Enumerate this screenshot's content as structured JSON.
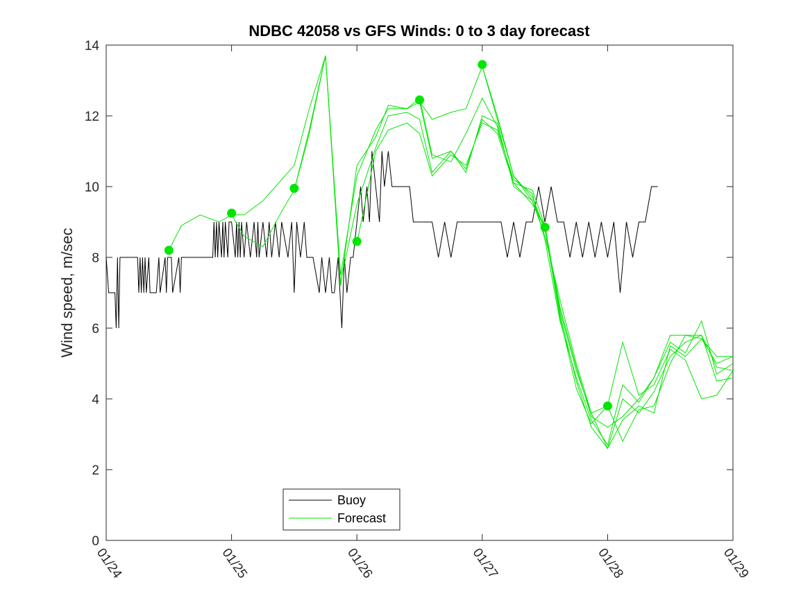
{
  "chart_data": {
    "type": "line",
    "title": "NDBC 42058 vs GFS Winds: 0 to 3 day forecast",
    "xlabel": "",
    "ylabel": "Wind speed, m/sec",
    "xlim": [
      0,
      5
    ],
    "ylim": [
      0,
      14
    ],
    "x_ticks": [
      0,
      1,
      2,
      3,
      4,
      5
    ],
    "x_tick_labels": [
      "01/24",
      "01/25",
      "01/26",
      "01/27",
      "01/28",
      "01/29"
    ],
    "y_ticks": [
      0,
      2,
      4,
      6,
      8,
      10,
      12,
      14
    ],
    "y_tick_labels": [
      "0",
      "2",
      "4",
      "6",
      "8",
      "10",
      "12",
      "14"
    ],
    "x_units": "days since 01/24 00:00",
    "legend": {
      "position": "bottom-center",
      "entries": [
        "Buoy",
        "Forecast"
      ]
    },
    "colors": {
      "buoy": "#000000",
      "forecast": "#00e600",
      "markers": "#00e600"
    },
    "series": [
      {
        "name": "Buoy",
        "color": "#000000",
        "x": [
          0,
          0.02,
          0.07,
          0.08,
          0.09,
          0.1,
          0.11,
          0.12,
          0.25,
          0.26,
          0.27,
          0.28,
          0.29,
          0.3,
          0.31,
          0.32,
          0.34,
          0.35,
          0.36,
          0.4,
          0.42,
          0.43,
          0.47,
          0.48,
          0.49,
          0.5,
          0.52,
          0.53,
          0.58,
          0.59,
          0.6,
          0.61,
          0.62,
          0.63,
          0.7,
          0.71,
          0.72,
          0.73,
          0.85,
          0.86,
          0.87,
          0.88,
          0.89,
          0.9,
          0.92,
          0.93,
          0.94,
          0.95,
          0.97,
          0.98,
          1.0,
          1.03,
          1.04,
          1.05,
          1.06,
          1.07,
          1.08,
          1.1,
          1.12,
          1.15,
          1.18,
          1.2,
          1.21,
          1.22,
          1.25,
          1.28,
          1.3,
          1.32,
          1.35,
          1.38,
          1.4,
          1.45,
          1.48,
          1.5,
          1.52,
          1.55,
          1.58,
          1.6,
          1.65,
          1.7,
          1.72,
          1.75,
          1.78,
          1.8,
          1.82,
          1.85,
          1.88,
          1.9,
          1.92,
          1.95,
          1.97,
          2.0,
          2.03,
          2.05,
          2.08,
          2.1,
          2.12,
          2.15,
          2.18,
          2.2,
          2.22,
          2.25,
          2.28,
          2.3,
          2.32,
          2.35,
          2.38,
          2.4,
          2.42,
          2.45,
          2.5,
          2.55,
          2.6,
          2.65,
          2.7,
          2.75,
          2.8,
          2.85,
          2.9,
          2.95,
          3.0,
          3.05,
          3.1,
          3.15,
          3.2,
          3.25,
          3.3,
          3.35,
          3.4,
          3.45,
          3.5,
          3.55,
          3.6,
          3.65,
          3.7,
          3.75,
          3.8,
          3.85,
          3.9,
          3.95,
          4.0,
          4.05,
          4.1,
          4.15,
          4.2,
          4.25,
          4.3,
          4.35,
          4.4
        ],
        "values": [
          8,
          7,
          7,
          6,
          8,
          6,
          8,
          8,
          8,
          7,
          8,
          7,
          8,
          7,
          8,
          7,
          8,
          7,
          7,
          7,
          8,
          7,
          8,
          7,
          8,
          8,
          8,
          7,
          8,
          7,
          8,
          8,
          8,
          8,
          8,
          8,
          8,
          8,
          8,
          9,
          8,
          9,
          8,
          9,
          8,
          9,
          8,
          9,
          8,
          9,
          9,
          8,
          9,
          8,
          9,
          8,
          9,
          8,
          9,
          8,
          9,
          8,
          9,
          8,
          9,
          8,
          9,
          8,
          9,
          8,
          9,
          8,
          9,
          7,
          9,
          8,
          9,
          8,
          8,
          7,
          8,
          7,
          8,
          7,
          7,
          8,
          6,
          8,
          7,
          8,
          8,
          9,
          10,
          9,
          10,
          9,
          11,
          10,
          9,
          11,
          10,
          11,
          10,
          10,
          10,
          10,
          10,
          10,
          10,
          9,
          9,
          9,
          9,
          8,
          9,
          8,
          9,
          9,
          9,
          9,
          9,
          9,
          9,
          9,
          8,
          9,
          8,
          9,
          9,
          10,
          9,
          10,
          9,
          9,
          8,
          9,
          8,
          9,
          8,
          9,
          8,
          9,
          7,
          9,
          8,
          9,
          9,
          10,
          10
        ]
      },
      {
        "name": "Forecast",
        "color": "#00e600",
        "x": [
          0.5,
          0.6,
          0.75,
          0.9,
          1.0,
          1.1,
          1.25,
          1.5,
          1.62,
          1.75,
          1.87,
          2.0,
          2.15,
          2.25,
          2.4,
          2.5,
          2.6,
          2.75,
          2.87,
          3.0,
          3.12,
          3.25,
          3.4,
          3.5,
          3.62,
          3.75,
          3.87,
          4.0,
          4.12,
          4.25,
          4.37,
          4.5,
          4.62,
          4.75,
          4.87,
          5.0
        ],
        "values": [
          8.2,
          8.9,
          9.2,
          9.0,
          9.2,
          9.2,
          9.6,
          10.6,
          12.2,
          13.7,
          7.2,
          10.6,
          11.4,
          12.3,
          12.2,
          12.4,
          11.9,
          12.1,
          12.2,
          13.4,
          11.9,
          10.3,
          9.6,
          8.8,
          6.6,
          4.9,
          3.5,
          3.2,
          3.5,
          4.0,
          4.6,
          5.8,
          5.8,
          5.8,
          4.9,
          4.8
        ]
      },
      {
        "name": "Forecast",
        "color": "#00e600",
        "x": [
          1.0,
          1.1,
          1.25,
          1.4,
          1.5,
          1.62,
          1.75,
          1.87,
          2.0,
          2.15,
          2.25,
          2.4,
          2.5,
          2.6,
          2.75,
          2.87,
          3.0,
          3.12,
          3.25,
          3.4,
          3.5,
          3.62,
          3.75,
          3.87,
          4.0,
          4.12,
          4.25,
          4.37,
          4.5,
          4.62,
          4.75,
          4.87,
          5.0
        ],
        "values": [
          9.2,
          8.6,
          8.3,
          9.3,
          9.9,
          11.5,
          13.7,
          7.5,
          10.3,
          11.6,
          12.2,
          12.2,
          12.5,
          10.9,
          10.7,
          11.5,
          12.5,
          11.7,
          10.1,
          9.5,
          8.9,
          6.4,
          4.5,
          3.2,
          2.6,
          4.0,
          3.6,
          4.2,
          5.2,
          5.6,
          5.8,
          4.5,
          4.6
        ]
      },
      {
        "name": "Forecast",
        "color": "#00e600",
        "x": [
          1.5,
          1.62,
          1.75,
          1.87,
          2.0,
          2.15,
          2.25,
          2.4,
          2.5,
          2.6,
          2.75,
          2.87,
          3.0,
          3.12,
          3.25,
          3.4,
          3.5,
          3.62,
          3.75,
          3.87,
          4.0,
          4.12,
          4.25,
          4.37,
          4.5,
          4.62,
          4.75,
          4.87,
          5.0
        ],
        "values": [
          9.9,
          11.6,
          13.7,
          7.3,
          9.5,
          11.1,
          12.0,
          12.1,
          11.9,
          10.4,
          11.0,
          10.4,
          12.0,
          11.8,
          10.0,
          9.6,
          8.6,
          6.8,
          5.0,
          3.6,
          2.6,
          3.4,
          3.8,
          3.6,
          5.5,
          5.2,
          5.7,
          5.0,
          5.2
        ]
      },
      {
        "name": "Forecast",
        "color": "#00e600",
        "x": [
          2.0,
          2.15,
          2.25,
          2.4,
          2.5,
          2.6,
          2.75,
          2.87,
          3.0,
          3.12,
          3.25,
          3.4,
          3.5,
          3.62,
          3.75,
          3.87,
          4.0,
          4.12,
          4.25,
          4.37,
          4.5,
          4.62,
          4.75,
          4.87,
          5.0
        ],
        "values": [
          8.4,
          11.0,
          11.6,
          11.8,
          11.5,
          10.3,
          10.9,
          10.6,
          11.8,
          11.6,
          10.2,
          9.8,
          8.5,
          6.2,
          4.6,
          3.4,
          2.7,
          4.4,
          3.9,
          4.6,
          5.6,
          5.3,
          6.2,
          4.7,
          5.0
        ]
      },
      {
        "name": "Forecast",
        "color": "#00e600",
        "x": [
          2.5,
          2.6,
          2.75,
          2.87,
          3.0,
          3.12,
          3.25,
          3.4,
          3.5,
          3.62,
          3.75,
          3.87,
          4.0,
          4.12,
          4.25,
          4.37,
          4.5,
          4.62,
          4.75,
          4.87,
          5.0
        ],
        "values": [
          12.4,
          10.8,
          11.0,
          10.5,
          11.9,
          11.5,
          10.1,
          9.9,
          8.9,
          6.5,
          4.8,
          3.6,
          3.8,
          5.6,
          4.1,
          4.4,
          5.4,
          5.1,
          4.0,
          4.1,
          4.8
        ]
      },
      {
        "name": "Forecast",
        "color": "#00e600",
        "x": [
          3.0,
          3.12,
          3.25,
          3.4,
          3.5,
          3.62,
          3.75,
          3.87,
          4.0,
          4.12,
          4.25,
          4.37,
          4.5,
          4.62,
          4.75,
          4.87,
          5.0
        ],
        "values": [
          13.4,
          12.0,
          10.3,
          9.7,
          8.8,
          6.3,
          4.3,
          3.3,
          3.8,
          2.8,
          3.7,
          3.8,
          5.0,
          5.8,
          5.7,
          5.2,
          5.2
        ]
      }
    ],
    "forecast_markers": {
      "name": "Forecast initial points",
      "x": [
        0.5,
        1.0,
        1.5,
        2.0,
        2.5,
        3.0,
        3.5,
        4.0
      ],
      "values": [
        8.2,
        9.25,
        9.95,
        8.45,
        12.45,
        13.45,
        8.85,
        3.8
      ]
    }
  }
}
